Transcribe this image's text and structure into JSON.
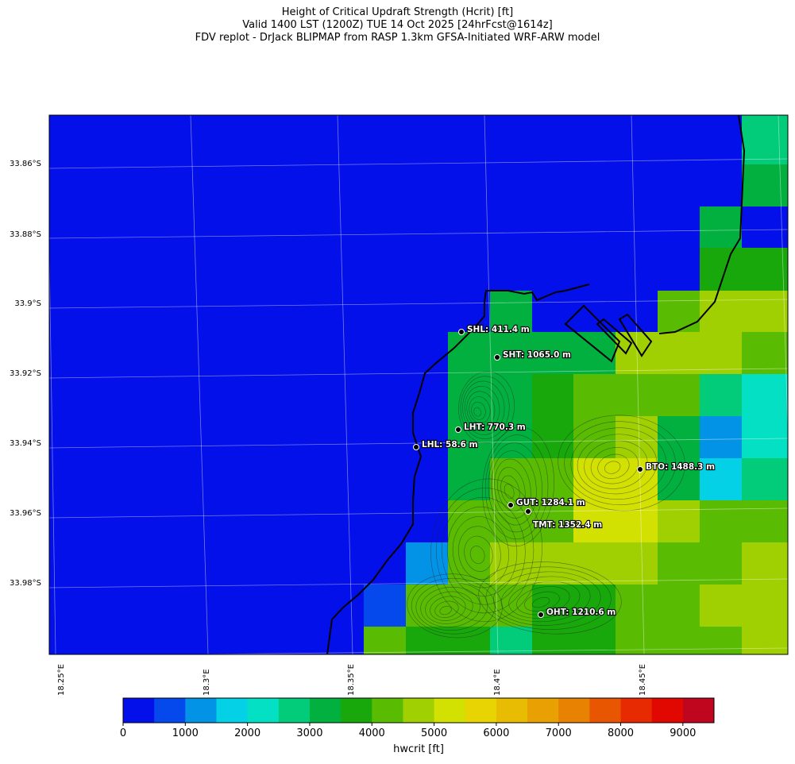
{
  "titles": {
    "line1": "Height of Critical Updraft Strength (Hcrit) [ft]",
    "line2": "Valid 1400 LST (1200Z) TUE 14 Oct 2025 [24hrFcst@1614z]",
    "line3": "FDV replot - DrJack BLIPMAP from RASP 1.3km GFSA-Initiated WRF-ARW model"
  },
  "lat_labels": [
    "33.86°S",
    "33.88°S",
    "33.9°S",
    "33.92°S",
    "33.94°S",
    "33.96°S",
    "33.98°S"
  ],
  "lon_labels": [
    "18.25°E",
    "18.3°E",
    "18.35°E",
    "18.4°E",
    "18.45°E"
  ],
  "stations": [
    {
      "code": "SHL",
      "label": "SHL: 411.4 m"
    },
    {
      "code": "SHT",
      "label": "SHT: 1065.0 m"
    },
    {
      "code": "LHT",
      "label": "LHT: 770.3 m"
    },
    {
      "code": "LHL",
      "label": "LHL: 58.6 m"
    },
    {
      "code": "BTO",
      "label": "BTO: 1488.3 m"
    },
    {
      "code": "GUT",
      "label": "GUT: 1284.1 m"
    },
    {
      "code": "TMT",
      "label": "TMT: 1352.4 m"
    },
    {
      "code": "OHT",
      "label": "OHT: 1210.6 m"
    }
  ],
  "colorbar": {
    "label": "hwcrit [ft]",
    "ticks": [
      "0",
      "1000",
      "2000",
      "3000",
      "4000",
      "5000",
      "6000",
      "7000",
      "8000",
      "9000"
    ],
    "colors": [
      "#0310ea",
      "#0548ec",
      "#0393e6",
      "#04d0e6",
      "#04e0c4",
      "#02cb7a",
      "#02b040",
      "#18a80c",
      "#5abc02",
      "#a0d002",
      "#d2e002",
      "#e8d402",
      "#e8bc02",
      "#e8a002",
      "#e88202",
      "#e85602",
      "#e82a02",
      "#e20802",
      "#c0061e"
    ]
  },
  "grid_colors": {
    "blue": "#0310ea",
    "blue2": "#0548ec",
    "lblue": "#0393e6",
    "cyan": "#04d0e6",
    "aqua": "#04e0c4",
    "sea": "#02cb7a",
    "g1": "#02b040",
    "g2": "#18a80c",
    "lg": "#5abc02",
    "ylg": "#a0d002",
    "yel": "#d2e002"
  }
}
